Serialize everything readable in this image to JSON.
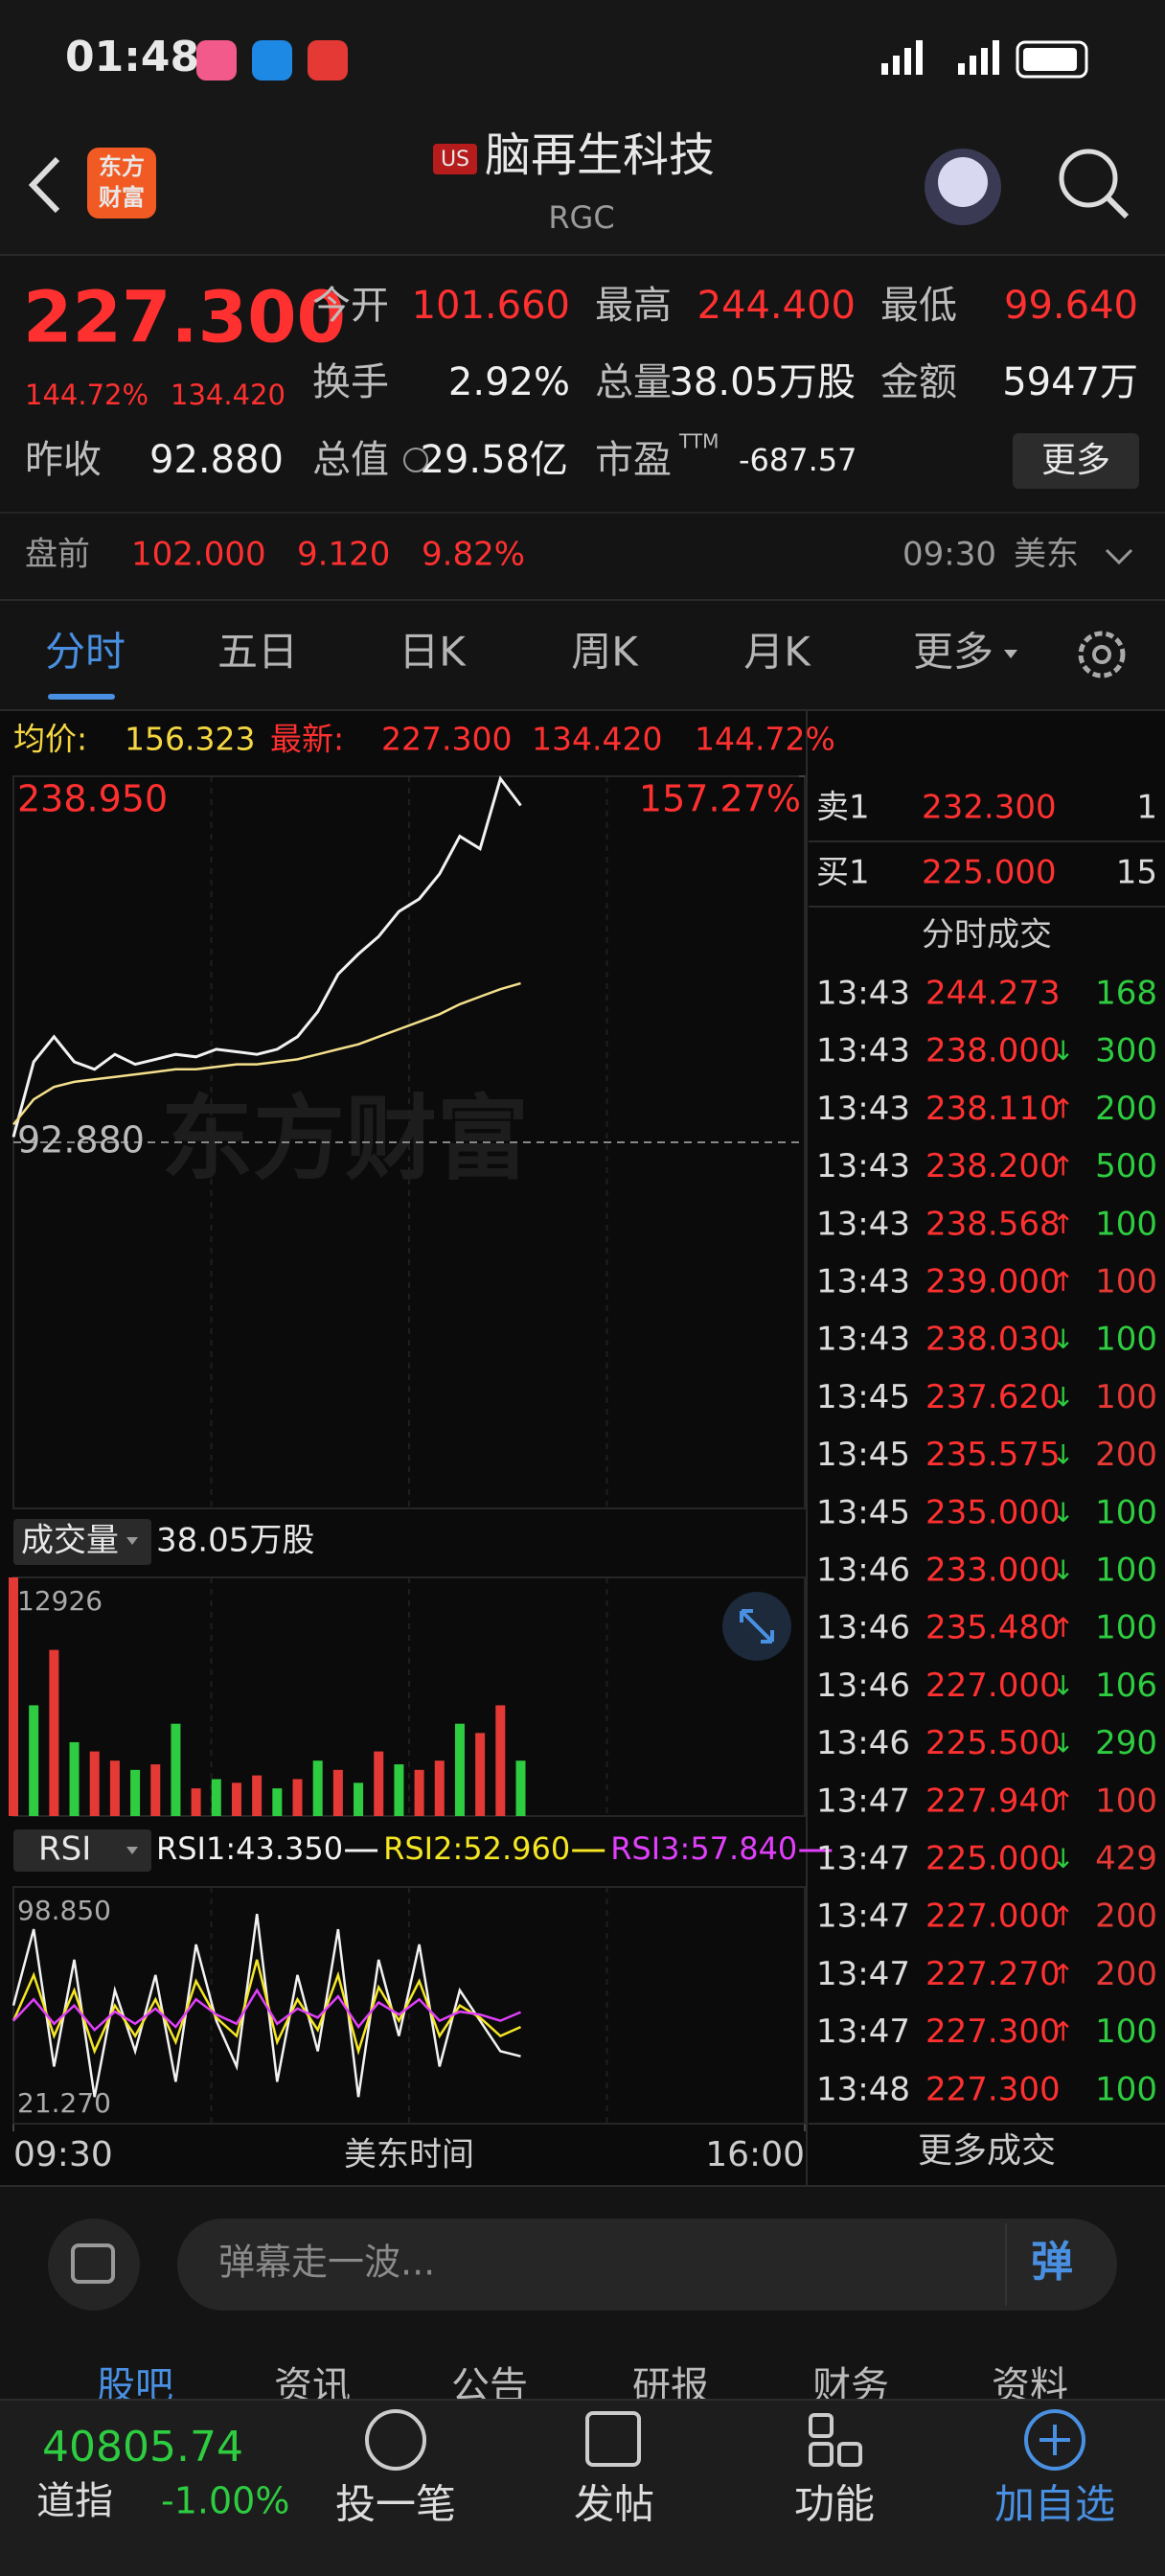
{
  "status_bar": {
    "time": "01:48"
  },
  "header": {
    "logo": [
      "东方",
      "财富"
    ],
    "market": "US",
    "name": "脑再生科技",
    "ticker": "RGC"
  },
  "quote": {
    "price": "227.300",
    "change_pct": "144.72%",
    "change": "134.420",
    "fields": [
      {
        "label": "今开",
        "value": "101.660"
      },
      {
        "label": "最高",
        "value": "244.400"
      },
      {
        "label": "最低",
        "value": "99.640"
      },
      {
        "label": "换手",
        "value": "2.92%"
      },
      {
        "label": "总量",
        "value": "38.05万股"
      },
      {
        "label": "金额",
        "value": "5947万"
      },
      {
        "label": "昨收",
        "value": "92.880"
      },
      {
        "label": "总值",
        "value": "29.58亿"
      },
      {
        "label": "市盈",
        "sup": "TTM",
        "value": "-687.57"
      }
    ],
    "more": "更多"
  },
  "premarket": {
    "label": "盘前",
    "price": "102.000",
    "change": "9.120",
    "pct": "9.82%",
    "time": "09:30",
    "market": "美东"
  },
  "tabs": [
    "分时",
    "五日",
    "日K",
    "周K",
    "月K",
    "更多"
  ],
  "info_bar": {
    "avg_label": "均价:",
    "avg": "156.323",
    "latest_label": "最新:",
    "latest": "227.300",
    "change": "134.420",
    "pct": "144.72%"
  },
  "watermark": "东方财富",
  "chart_data": [
    {
      "type": "line",
      "xlim": [
        0,
        39
      ],
      "xticks": [
        {
          "value": 0,
          "label": "09:30"
        },
        {
          "value": 39,
          "label": "16:00"
        }
      ],
      "xlabel": "美东时间",
      "ylim": [
        -53.19,
        238.95
      ],
      "yticks": [
        {
          "value": 238.95,
          "label": "238.950"
        },
        {
          "value": 92.88,
          "label": "92.880"
        }
      ],
      "y2lim": [
        -157.27,
        157.27
      ],
      "y2ticks": [
        {
          "value": 157.27,
          "label": "157.27%"
        }
      ],
      "series": [
        {
          "color": "#f2f2f2",
          "values": [
            95,
            125,
            135,
            125,
            122,
            128,
            124,
            126,
            128,
            127,
            130,
            129,
            128,
            130,
            135,
            145,
            160,
            168,
            175,
            185,
            190,
            200,
            215,
            210,
            238,
            227.3,
            null,
            null,
            null,
            null,
            null,
            null,
            null,
            null,
            null,
            null,
            null,
            null,
            null,
            null
          ]
        },
        {
          "color": "#f3e08c",
          "values": [
            100,
            110,
            115,
            117,
            118,
            119,
            120,
            121,
            122,
            122,
            123,
            124,
            124,
            125,
            126,
            128,
            130,
            132,
            135,
            138,
            141,
            144,
            148,
            151,
            154,
            156.323,
            null,
            null,
            null,
            null,
            null,
            null,
            null,
            null,
            null,
            null,
            null,
            null,
            null,
            null
          ]
        }
      ]
    },
    {
      "type": "bar",
      "title": "成交量",
      "subtitle": "38.05万股",
      "xlim": [
        0,
        39
      ],
      "ylim": [
        0,
        12926
      ],
      "yticks": [
        12926
      ],
      "values": [
        12926,
        6000,
        9000,
        4000,
        3500,
        3000,
        2500,
        2800,
        5000,
        1500,
        2000,
        1800,
        2200,
        1500,
        2000,
        3000,
        2500,
        1800,
        3500,
        2800,
        2500,
        3000,
        5000,
        4500,
        6000,
        3000,
        null,
        null,
        null,
        null,
        null,
        null,
        null,
        null,
        null,
        null,
        null,
        null,
        null,
        null
      ],
      "colors": [
        "#e53935",
        "#2ecc40",
        "#e53935",
        "#2ecc40",
        "#e53935",
        "#e53935",
        "#2ecc40",
        "#e53935",
        "#2ecc40",
        "#e53935",
        "#2ecc40",
        "#e53935",
        "#e53935",
        "#2ecc40",
        "#e53935",
        "#2ecc40",
        "#e53935",
        "#2ecc40",
        "#e53935",
        "#2ecc40",
        "#e53935",
        "#e53935",
        "#2ecc40",
        "#e53935",
        "#e53935",
        "#2ecc40",
        null,
        null,
        null,
        null,
        null,
        null,
        null,
        null,
        null,
        null,
        null,
        null,
        null,
        null
      ]
    },
    {
      "type": "line",
      "title": "RSI",
      "xlim": [
        0,
        39
      ],
      "ylim": [
        21.27,
        98.85
      ],
      "yticks": [
        {
          "value": 98.85,
          "label": "98.850"
        },
        {
          "value": 21.27,
          "label": "21.270"
        }
      ],
      "series": [
        {
          "name": "RSI1:43.350",
          "color": "#f2f2f2",
          "values": [
            60,
            85,
            40,
            75,
            30,
            65,
            45,
            70,
            35,
            80,
            55,
            40,
            90,
            35,
            70,
            45,
            85,
            30,
            75,
            50,
            80,
            40,
            65,
            55,
            45,
            43.35,
            null,
            null,
            null,
            null,
            null,
            null,
            null,
            null,
            null,
            null,
            null,
            null,
            null,
            null
          ]
        },
        {
          "name": "RSI2:52.960",
          "color": "#f5e625",
          "values": [
            55,
            70,
            50,
            65,
            45,
            60,
            50,
            62,
            48,
            68,
            56,
            50,
            75,
            48,
            62,
            52,
            70,
            45,
            66,
            55,
            68,
            50,
            60,
            56,
            50,
            52.96,
            null,
            null,
            null,
            null,
            null,
            null,
            null,
            null,
            null,
            null,
            null,
            null,
            null,
            null
          ]
        },
        {
          "name": "RSI3:57.840",
          "color": "#e040fb",
          "values": [
            55,
            62,
            54,
            60,
            52,
            58,
            54,
            59,
            53,
            62,
            57,
            54,
            65,
            54,
            59,
            56,
            63,
            53,
            61,
            57,
            62,
            55,
            58,
            57,
            55,
            57.84,
            null,
            null,
            null,
            null,
            null,
            null,
            null,
            null,
            null,
            null,
            null,
            null,
            null,
            null
          ]
        }
      ]
    }
  ],
  "order_book": [
    {
      "side": "卖1",
      "price": "232.300",
      "volume": "1"
    },
    {
      "side": "买1",
      "price": "225.000",
      "volume": "15"
    }
  ],
  "trades": {
    "title": "分时成交",
    "more": "更多成交",
    "rows": [
      {
        "time": "13:43",
        "price": "244.273",
        "volume": "168",
        "color": "#2ecc40"
      },
      {
        "time": "13:43",
        "price": "238.000",
        "arrow": "↓",
        "volume": "300",
        "color": "#2ecc40"
      },
      {
        "time": "13:43",
        "price": "238.110",
        "arrow": "↑",
        "volume": "200",
        "color": "#2ecc40"
      },
      {
        "time": "13:43",
        "price": "238.200",
        "arrow": "↑",
        "volume": "500",
        "color": "#2ecc40"
      },
      {
        "time": "13:43",
        "price": "238.568",
        "arrow": "↑",
        "volume": "100",
        "color": "#2ecc40"
      },
      {
        "time": "13:43",
        "price": "239.000",
        "arrow": "↑",
        "volume": "100",
        "color": "#e53935"
      },
      {
        "time": "13:43",
        "price": "238.030",
        "arrow": "↓",
        "volume": "100",
        "color": "#2ecc40"
      },
      {
        "time": "13:45",
        "price": "237.620",
        "arrow": "↓",
        "volume": "100",
        "color": "#e53935"
      },
      {
        "time": "13:45",
        "price": "235.575",
        "arrow": "↓",
        "volume": "200",
        "color": "#e53935"
      },
      {
        "time": "13:45",
        "price": "235.000",
        "arrow": "↓",
        "volume": "100",
        "color": "#2ecc40"
      },
      {
        "time": "13:46",
        "price": "233.000",
        "arrow": "↓",
        "volume": "100",
        "color": "#2ecc40"
      },
      {
        "time": "13:46",
        "price": "235.480",
        "arrow": "↑",
        "volume": "100",
        "color": "#2ecc40"
      },
      {
        "time": "13:46",
        "price": "227.000",
        "arrow": "↓",
        "volume": "106",
        "color": "#2ecc40"
      },
      {
        "time": "13:46",
        "price": "225.500",
        "arrow": "↓",
        "volume": "290",
        "color": "#2ecc40"
      },
      {
        "time": "13:47",
        "price": "227.940",
        "arrow": "↑",
        "volume": "100",
        "color": "#e53935"
      },
      {
        "time": "13:47",
        "price": "225.000",
        "arrow": "↓",
        "volume": "429",
        "color": "#e53935"
      },
      {
        "time": "13:47",
        "price": "227.000",
        "arrow": "↑",
        "volume": "200",
        "color": "#e53935"
      },
      {
        "time": "13:47",
        "price": "227.270",
        "arrow": "↑",
        "volume": "200",
        "color": "#e53935"
      },
      {
        "time": "13:47",
        "price": "227.300",
        "arrow": "↑",
        "volume": "100",
        "color": "#2ecc40"
      },
      {
        "time": "13:48",
        "price": "227.300",
        "volume": "100",
        "color": "#2ecc40"
      }
    ]
  },
  "comment": {
    "placeholder": "弹幕走一波...",
    "button": "弹"
  },
  "sub_tabs": [
    "股吧",
    "资讯",
    "公告",
    "研报",
    "财务",
    "资料"
  ],
  "footer": {
    "index_value": "40805.74",
    "index_name": "道指",
    "index_change": "-1.00%",
    "actions": [
      "投一笔",
      "发帖",
      "功能",
      "加自选"
    ]
  }
}
